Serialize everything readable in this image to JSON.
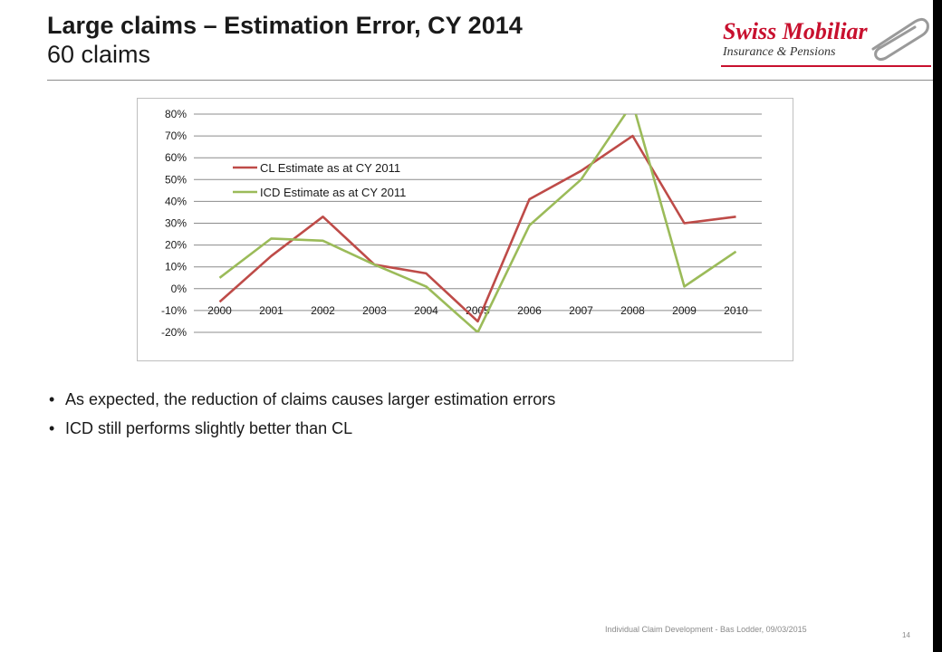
{
  "slide": {
    "title_line1": "Large claims – Estimation Error, CY 2014",
    "title_line2": "60 claims",
    "logo_brand": "Swiss Mobiliar",
    "logo_sub": "Insurance & Pensions",
    "bullets": [
      "As expected, the reduction of claims causes larger estimation errors",
      "ICD still performs slightly better than CL"
    ],
    "footer": "Individual Claim Development - Bas Lodder, 09/03/2015",
    "page_number": "14"
  },
  "colors": {
    "cl_series": "#be4b48",
    "icd_series": "#9bbb59",
    "grid": "#8c8c8c",
    "logo_red": "#c8102e"
  },
  "chart_data": {
    "type": "line",
    "x": [
      "2000",
      "2001",
      "2002",
      "2003",
      "2004",
      "2005",
      "2006",
      "2007",
      "2008",
      "2009",
      "2010"
    ],
    "yticks": [
      "80%",
      "70%",
      "60%",
      "50%",
      "40%",
      "30%",
      "20%",
      "10%",
      "0%",
      "-10%",
      "-20%"
    ],
    "ylim": [
      -20,
      80
    ],
    "grid": true,
    "legend_position": "top-left",
    "series": [
      {
        "name": "CL Estimate as at CY 2011",
        "color": "#be4b48",
        "values": [
          -6,
          15,
          33,
          11,
          7,
          -15,
          41,
          54,
          70,
          30,
          33
        ]
      },
      {
        "name": "ICD Estimate as at CY 2011",
        "color": "#9bbb59",
        "values": [
          5,
          23,
          22,
          11,
          1,
          -20,
          29,
          50,
          85,
          1,
          17
        ]
      }
    ]
  }
}
